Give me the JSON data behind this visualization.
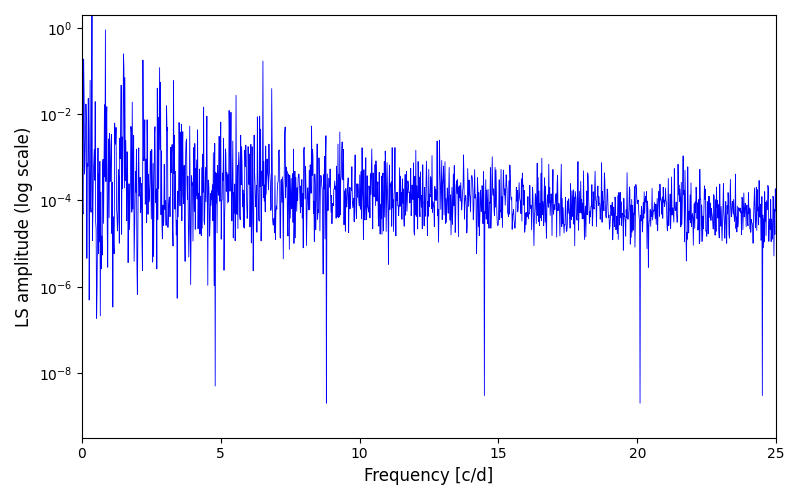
{
  "line_color": "#0000ff",
  "xlabel": "Frequency [c/d]",
  "ylabel": "LS amplitude (log scale)",
  "xlim": [
    0,
    25
  ],
  "xticks": [
    0,
    5,
    10,
    15,
    20,
    25
  ],
  "background_color": "#ffffff",
  "linewidth": 0.6,
  "figsize": [
    8.0,
    5.0
  ],
  "dpi": 100,
  "seed": 12345,
  "n_points": 1500,
  "freq_max": 25.0
}
